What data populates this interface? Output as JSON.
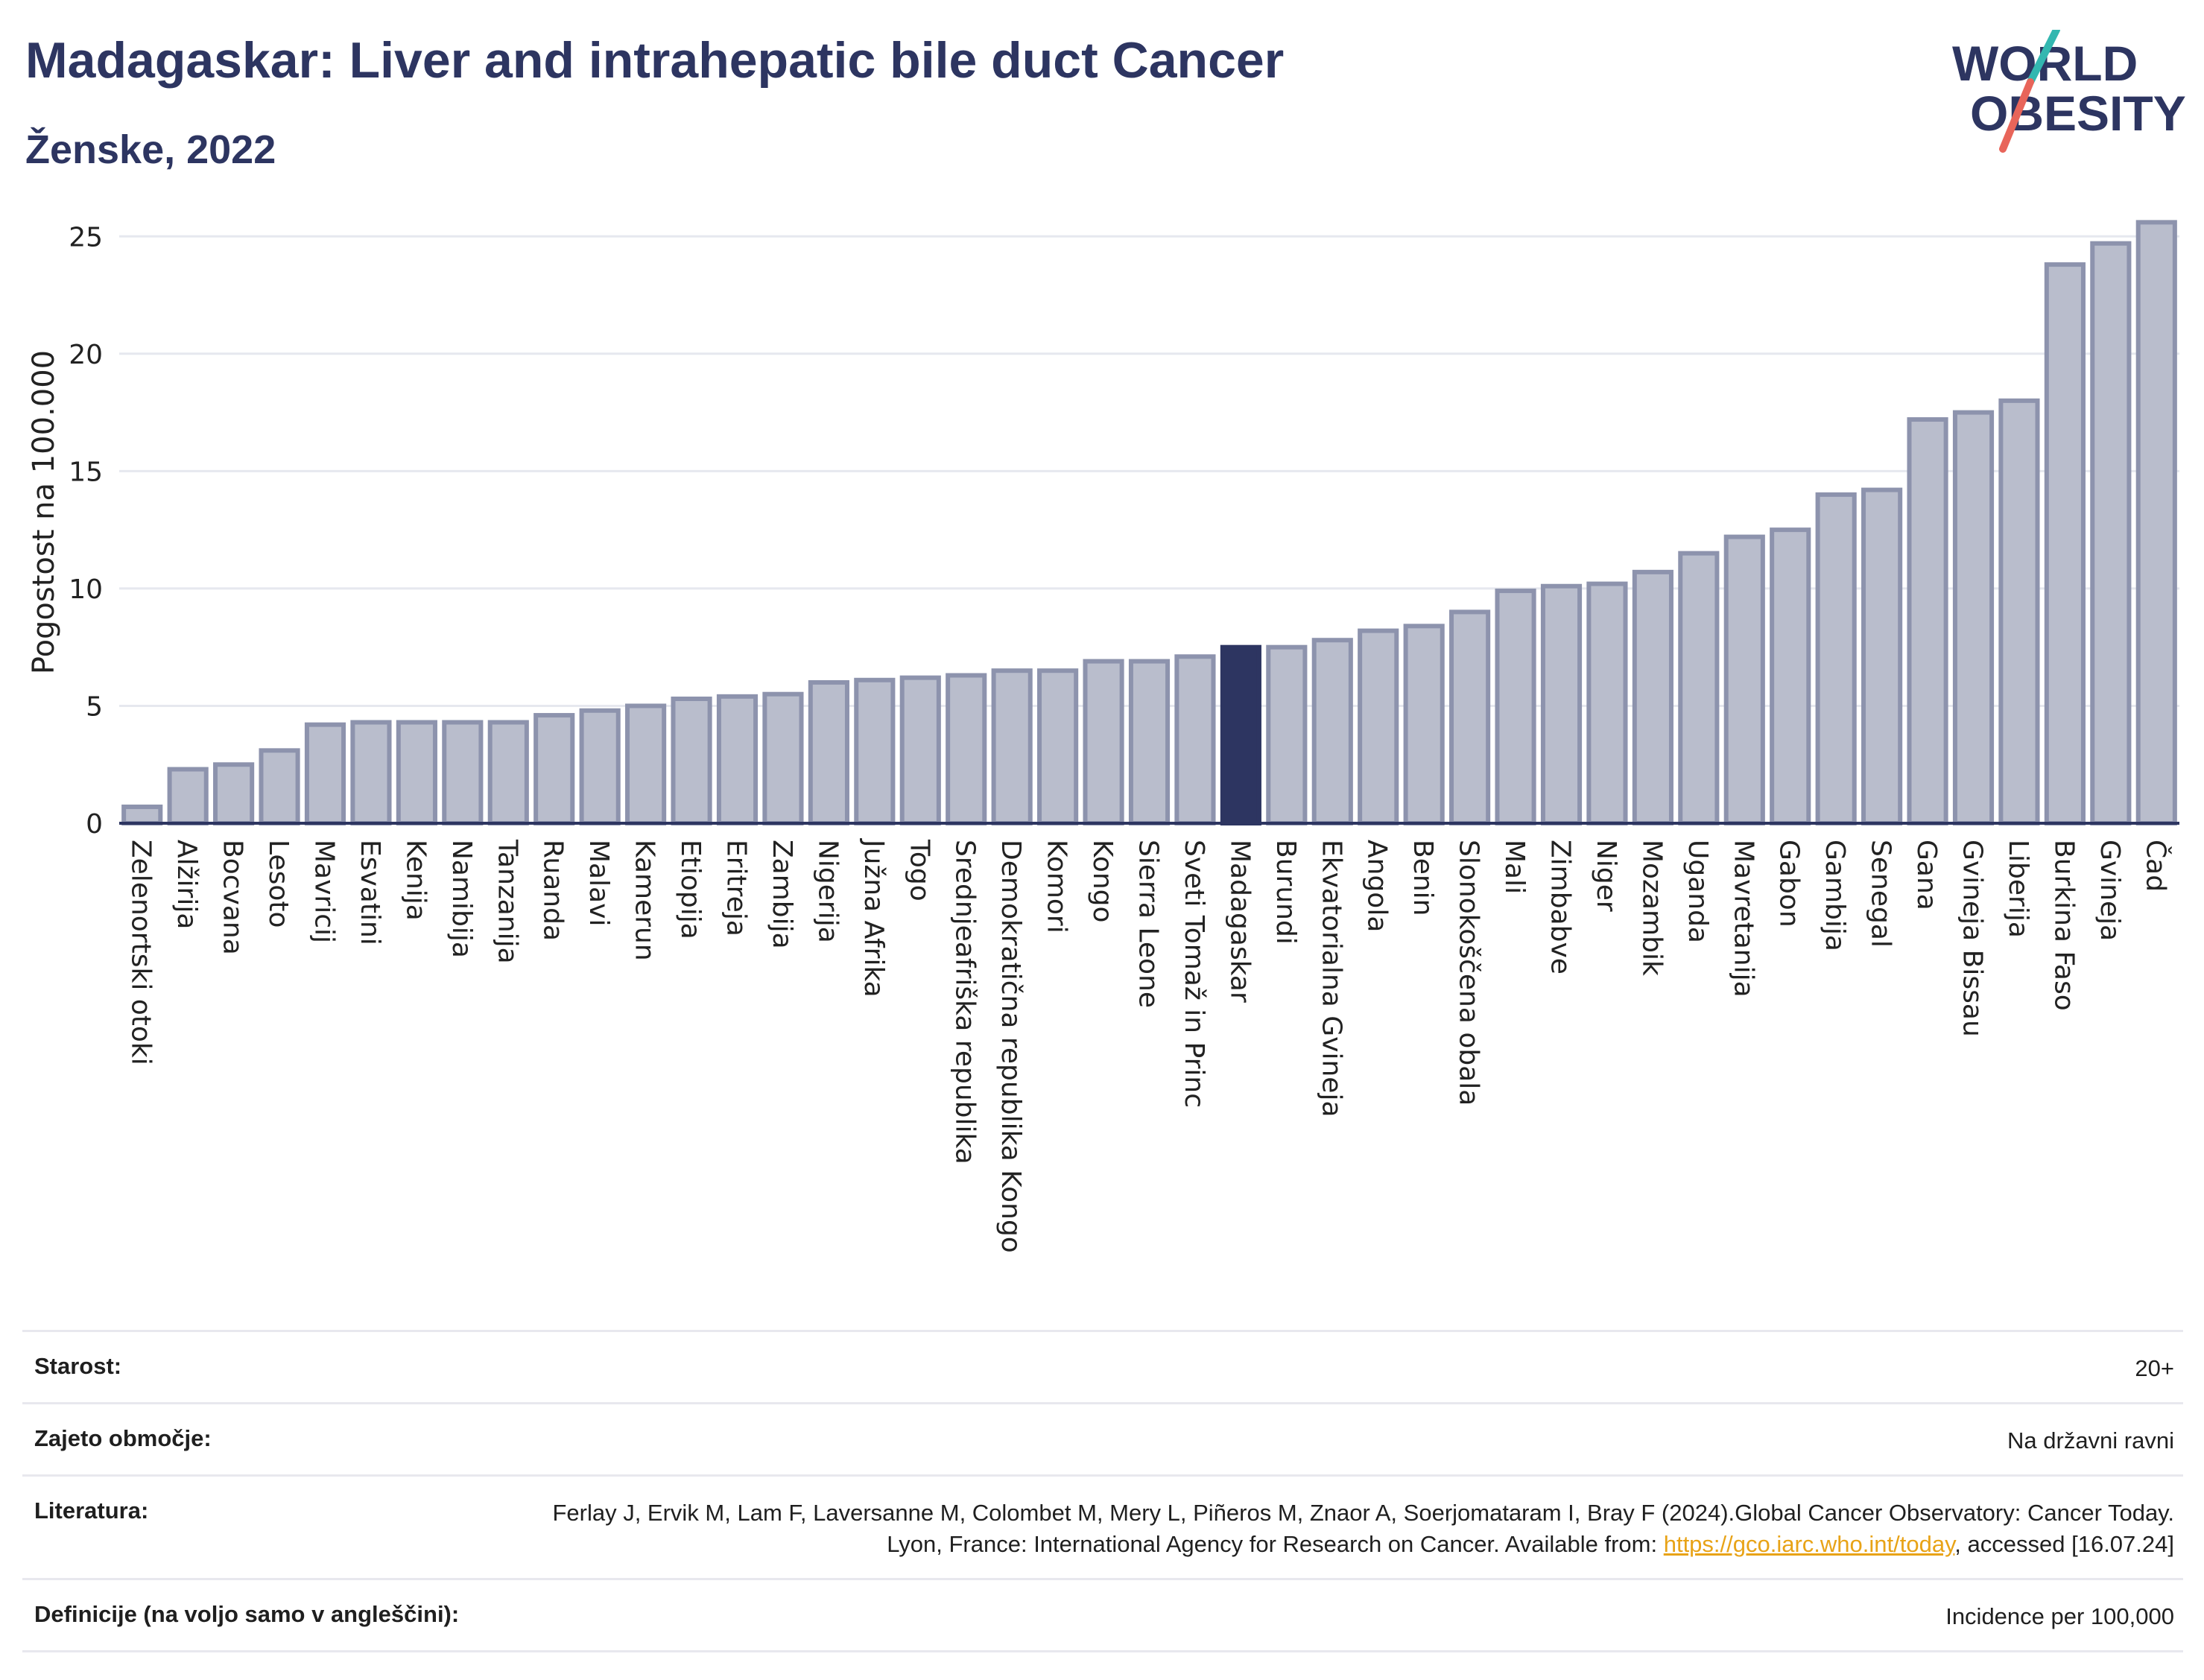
{
  "header": {
    "title": "Madagaskar: Liver and intrahepatic bile duct Cancer",
    "subtitle": "Ženske, 2022"
  },
  "logo": {
    "line1": "WORLD",
    "line2": "OBESITY"
  },
  "colors": {
    "highlight": "#2d3561",
    "bar_fill": "#b9bdcc",
    "bar_stroke": "#8d93ad",
    "grid": "#e6e8ef",
    "axis": "#2d3561",
    "logo_teal": "#33b7b0",
    "logo_red": "#e8655a"
  },
  "chart_data": {
    "type": "bar",
    "ylabel": "Pogostost na 100.000",
    "ylim": [
      0,
      26.5
    ],
    "yticks": [
      0,
      5,
      10,
      15,
      20,
      25
    ],
    "highlight": "Madagaskar",
    "grid": true,
    "categories": [
      "Zelenortski otoki",
      "Alžirija",
      "Bocvana",
      "Lesoto",
      "Mavricij",
      "Esvatini",
      "Kenija",
      "Namibija",
      "Tanzanija",
      "Ruanda",
      "Malavi",
      "Kamerun",
      "Etiopija",
      "Eritreja",
      "Zambija",
      "Nigerija",
      "Južna Afrika",
      "Togo",
      "Srednjeafriška republika",
      "Demokratična republika Kongo",
      "Komori",
      "Kongo",
      "Sierra Leone",
      "Sveti Tomaž in Princ",
      "Madagaskar",
      "Burundi",
      "Ekvatorialna Gvineja",
      "Angola",
      "Benin",
      "Slonokoščena obala",
      "Mali",
      "Zimbabve",
      "Niger",
      "Mozambik",
      "Uganda",
      "Mavretanija",
      "Gabon",
      "Gambija",
      "Senegal",
      "Gana",
      "Gvineja Bissau",
      "Liberija",
      "Burkina Faso",
      "Gvineja",
      "Čad"
    ],
    "values": [
      0.7,
      2.3,
      2.5,
      3.1,
      4.2,
      4.3,
      4.3,
      4.3,
      4.3,
      4.6,
      4.8,
      5.0,
      5.3,
      5.4,
      5.5,
      6.0,
      6.1,
      6.2,
      6.3,
      6.5,
      6.5,
      6.9,
      6.9,
      7.1,
      7.5,
      7.5,
      7.8,
      8.2,
      8.4,
      9.0,
      9.9,
      10.1,
      10.2,
      10.7,
      11.5,
      12.2,
      12.5,
      14.0,
      14.2,
      17.2,
      17.5,
      18.0,
      23.8,
      24.7,
      25.6
    ]
  },
  "info": {
    "rows": [
      {
        "label": "Starost:",
        "value": "20+"
      },
      {
        "label": "Zajeto območje:",
        "value": "Na državni ravni"
      },
      {
        "label": "Literatura:",
        "value_pre": "Ferlay J, Ervik M, Lam F, Laversanne M, Colombet M, Mery L, Piñeros M, Znaor A, Soerjomataram I, Bray F (2024).Global Cancer Observatory: Cancer Today. Lyon, France: International Agency for Research on Cancer. Available from: ",
        "link": "https://gco.iarc.who.int/today",
        "value_post": ", accessed [16.07.24]"
      },
      {
        "label": "Definicije (na voljo samo v angleščini):",
        "value": "Incidence per 100,000"
      }
    ]
  }
}
